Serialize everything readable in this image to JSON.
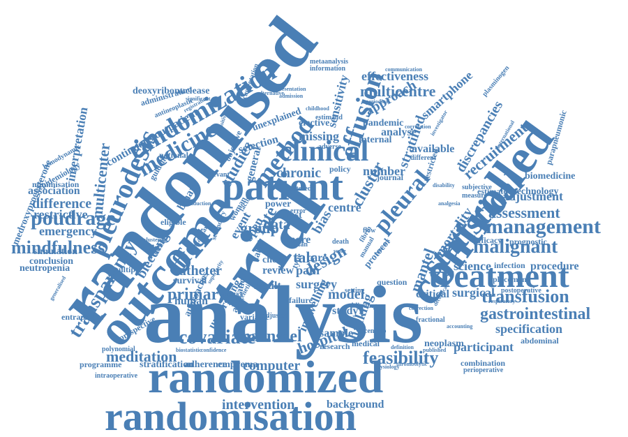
{
  "color": "#4a7fb5",
  "words": [
    "randomisation",
    "randomized",
    "analysis",
    "trial",
    "randomised",
    "treatment",
    "outcome",
    "controlled",
    "statistical",
    "patient",
    "pleurodesis",
    "effusion",
    "clinical",
    "management",
    "method",
    "randomization",
    "pleural",
    "assessment",
    "gastrointestinal",
    "malignant",
    "transfusion",
    "feasibility",
    "covariate",
    "intervention",
    "background",
    "meditation",
    "haenszel",
    "medicine",
    "effect",
    "transparency",
    "poudrage",
    "mindfulness",
    "specification",
    "participant",
    "adjustment",
    "recruitment",
    "effectiveness",
    "multicentre",
    "approach",
    "continuous outpatient",
    "design",
    "surgery",
    "group",
    "primary",
    "catheter",
    "talc",
    "hospital",
    "computer",
    "sensitivity",
    "discrepancies",
    "smartphone",
    "deoxyribonuclease",
    "administration",
    "documentation",
    "metaanalysis",
    "information",
    "communication",
    "interpretation",
    "multicenter",
    "association",
    "difference",
    "restrictive",
    "emergency",
    "simulation",
    "conclusion",
    "neutropenia",
    "medroxyprogesterone",
    "epidemiology",
    "minimisation",
    "bleeding",
    "science",
    "procedure",
    "mortality",
    "technology",
    "biomedicine",
    "surgical",
    "critical",
    "chronic",
    "number",
    "centre",
    "data",
    "pain",
    "care",
    "model",
    "study",
    "sample",
    "hacking",
    "cluster",
    "stratified",
    "analyse",
    "missing",
    "elective",
    "internal",
    "available",
    "selection",
    "unexplained",
    "pandemic",
    "stratification",
    "adherence",
    "empyema",
    "programme",
    "entrapment",
    "prospective",
    "multiple",
    "approaches",
    "undergoing",
    "indwelling",
    "medical",
    "neoplasm",
    "fractional",
    "question",
    "survival",
    "human",
    "result",
    "review",
    "chest",
    "label",
    "binary",
    "eligible",
    "national",
    "guideline",
    "studies",
    "general",
    "objective",
    "relevant",
    "journal",
    "efficacy",
    "prognostic",
    "infection",
    "estimate",
    "placement",
    "plasminogen",
    "parapneumonic",
    "postoperative",
    "abdominal",
    "combination",
    "perioperative",
    "intraoperative",
    "polynomial",
    "biostatistic",
    "confidence",
    "generalised",
    "hemodynamic",
    "sensitive",
    "alternative",
    "significant",
    "antineoplastic",
    "registration",
    "childhood",
    "periodical",
    "correlation",
    "investigator",
    "international",
    "mantel",
    "power",
    "error",
    "bias",
    "centered",
    "most",
    "policy",
    "research",
    "scenario",
    "definition",
    "published",
    "accounting",
    "decortication",
    "correction",
    "physiology",
    "thrombolytic",
    "blinding",
    "failure",
    "setting",
    "variable",
    "allocation",
    "adjusted",
    "protocol",
    "event",
    "open",
    "rate",
    "more",
    "type",
    "plan",
    "death",
    "score",
    "flow",
    "fibrin",
    "disability",
    "measure",
    "subjective",
    "restricted",
    "different",
    "analgesia",
    "respiratory",
    "estimand",
    "adverse",
    "presentation",
    "admission",
    "factor",
    "clustering",
    "standard",
    "induction",
    "woman",
    "secondary",
    "inclusion",
    "practice",
    "superiority",
    "network",
    "manual",
    "genetic"
  ]
}
